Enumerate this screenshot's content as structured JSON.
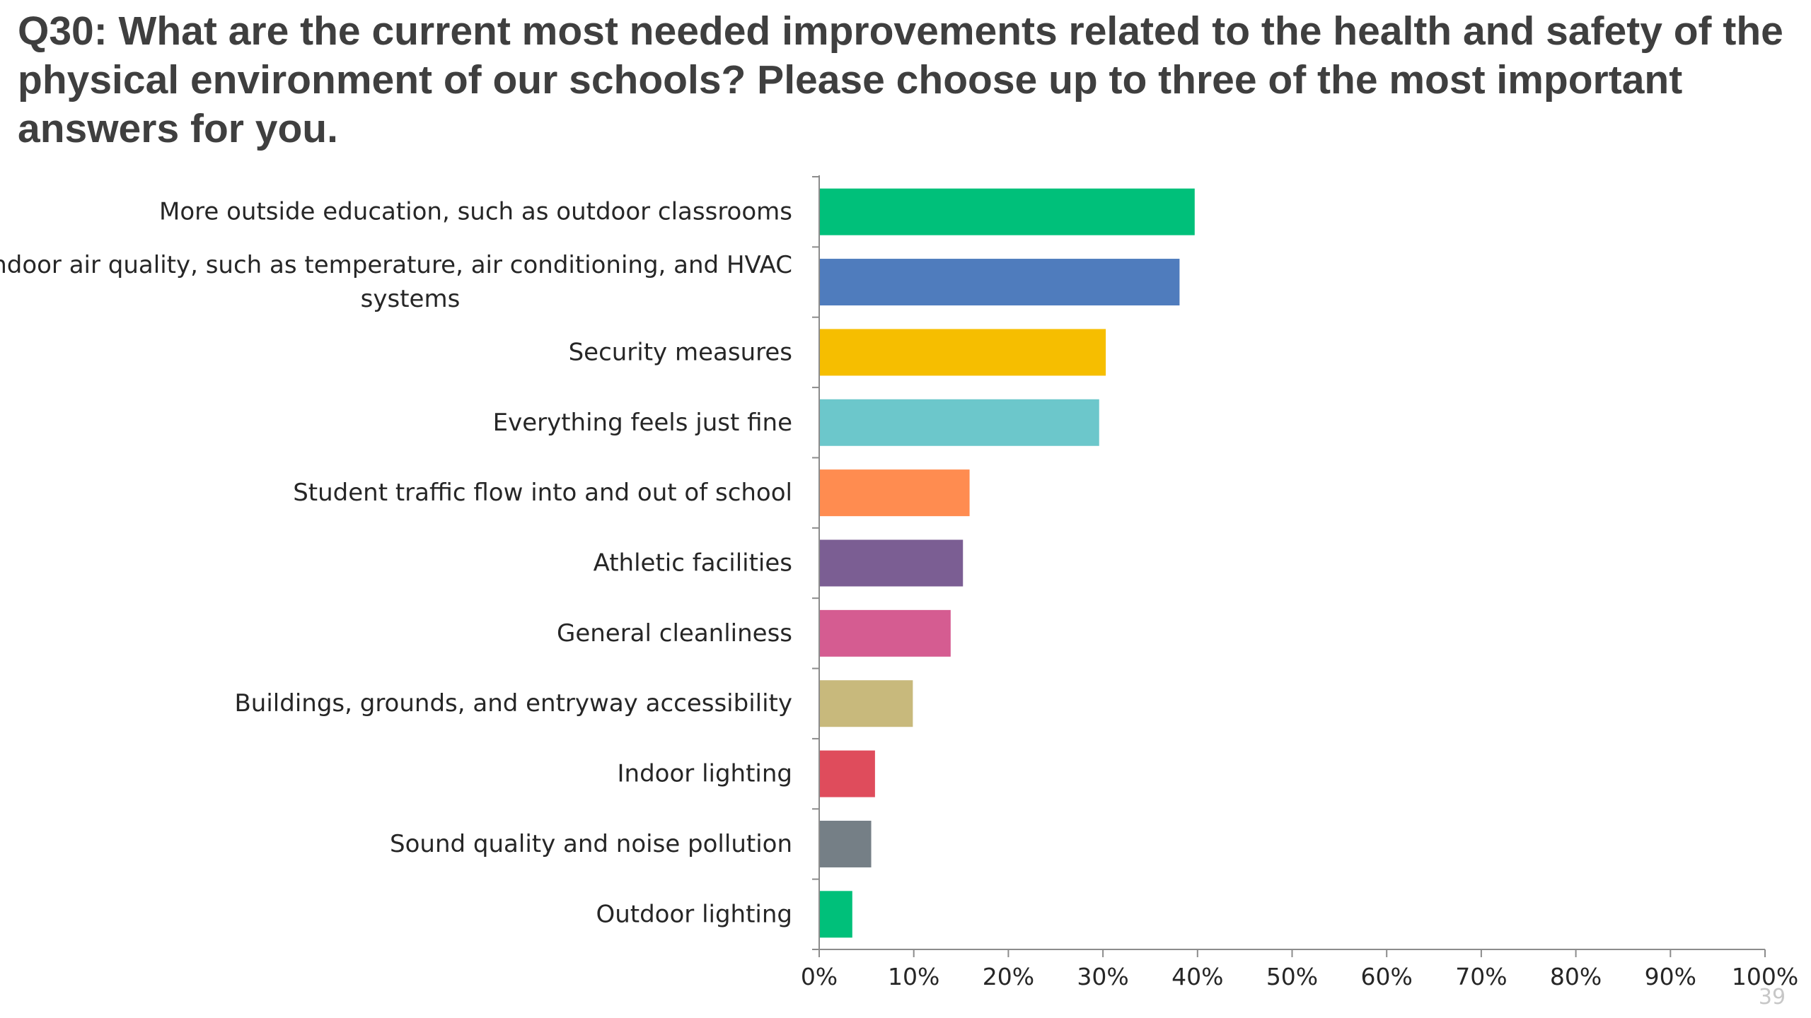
{
  "slide": {
    "title": "Q30: What are the current most needed improvements related to the health and safety of the physical environment of our schools? Please choose up to three of the most important answers for you.",
    "page_number": "39"
  },
  "chart_data": {
    "type": "bar",
    "orientation": "horizontal",
    "title": "Q30: What are the current most needed improvements related to the health and safety of the physical environment of our schools? Please choose up to three of the most important answers for you.",
    "xlabel": "",
    "ylabel": "",
    "xlim": [
      0,
      100
    ],
    "value_format": "percent",
    "grid": false,
    "legend": "none",
    "x_ticks": [
      "0%",
      "10%",
      "20%",
      "30%",
      "40%",
      "50%",
      "60%",
      "70%",
      "80%",
      "90%",
      "100%"
    ],
    "categories": [
      "More outside education, such as outdoor classrooms",
      "Indoor air quality, such as temperature, air conditioning, and HVAC systems",
      "Security measures",
      "Everything feels just fine",
      "Student traffic flow into and out of school",
      "Athletic facilities",
      "General cleanliness",
      "Buildings, grounds, and entryway accessibility",
      "Indoor lighting",
      "Sound quality and noise pollution",
      "Outdoor lighting"
    ],
    "category_lines": [
      [
        "More outside education, such as outdoor classrooms"
      ],
      [
        "Indoor air quality, such as temperature, air conditioning, and HVAC",
        "systems"
      ],
      [
        "Security measures"
      ],
      [
        "Everything feels just fine"
      ],
      [
        "Student traffic flow into and out of school"
      ],
      [
        "Athletic facilities"
      ],
      [
        "General cleanliness"
      ],
      [
        "Buildings, grounds, and entryway accessibility"
      ],
      [
        "Indoor lighting"
      ],
      [
        "Sound quality and noise pollution"
      ],
      [
        "Outdoor lighting"
      ]
    ],
    "values": [
      39.7,
      38.1,
      30.3,
      29.6,
      15.9,
      15.2,
      13.9,
      9.9,
      5.9,
      5.5,
      3.5
    ],
    "colors": [
      "#00c07a",
      "#4f7cbd",
      "#f6be00",
      "#6cc7cb",
      "#ff8c50",
      "#7b5e93",
      "#d55c91",
      "#c8b97c",
      "#df4c5c",
      "#757f86",
      "#00c07a"
    ]
  }
}
